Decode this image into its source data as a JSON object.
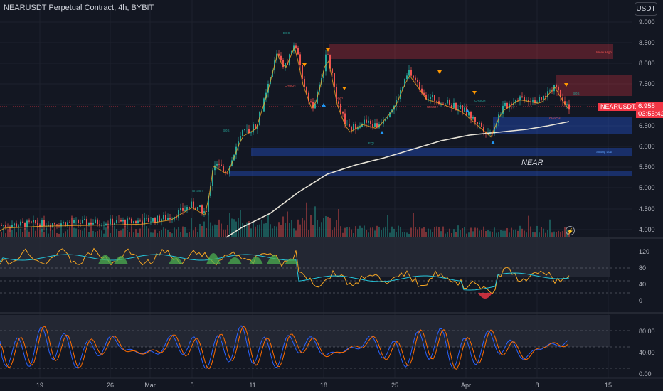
{
  "header": {
    "title": "NEARUSDT Perpetual Contract, 4h, BYBIT",
    "currency_button": "USDT"
  },
  "price": {
    "symbol_tag": "NEARUSDT.P",
    "last": "6.958",
    "countdown": "03:55:42",
    "watermark": "NEAR"
  },
  "price_axis": [
    "9.000",
    "8.500",
    "8.000",
    "7.500",
    "7.000",
    "6.500",
    "6.000",
    "5.500",
    "5.000",
    "4.500",
    "4.000"
  ],
  "rsi_axis": [
    "120",
    "80",
    "40",
    "0"
  ],
  "stoch_axis": [
    "80.00",
    "40.00",
    "0.00"
  ],
  "time_axis": [
    "19",
    "26",
    "Mar",
    "5",
    "11",
    "18",
    "25",
    "Apr",
    "8",
    "15"
  ],
  "annotations": {
    "weak_high": "Weak High",
    "strong_low": "Strong Low",
    "bos": "BOS",
    "choch": "CHoCH",
    "eqh": "EQH",
    "eql": "EQL"
  },
  "colors": {
    "up": "#26a69a",
    "down": "#ef5350",
    "supply": "#f23645",
    "demand": "#2962ff",
    "ma": "#e8e4d8",
    "rsi_line": "#f5a623",
    "rsi_signal": "#26c6da",
    "stoch_k": "#2962ff",
    "stoch_d": "#ff6d00"
  }
}
